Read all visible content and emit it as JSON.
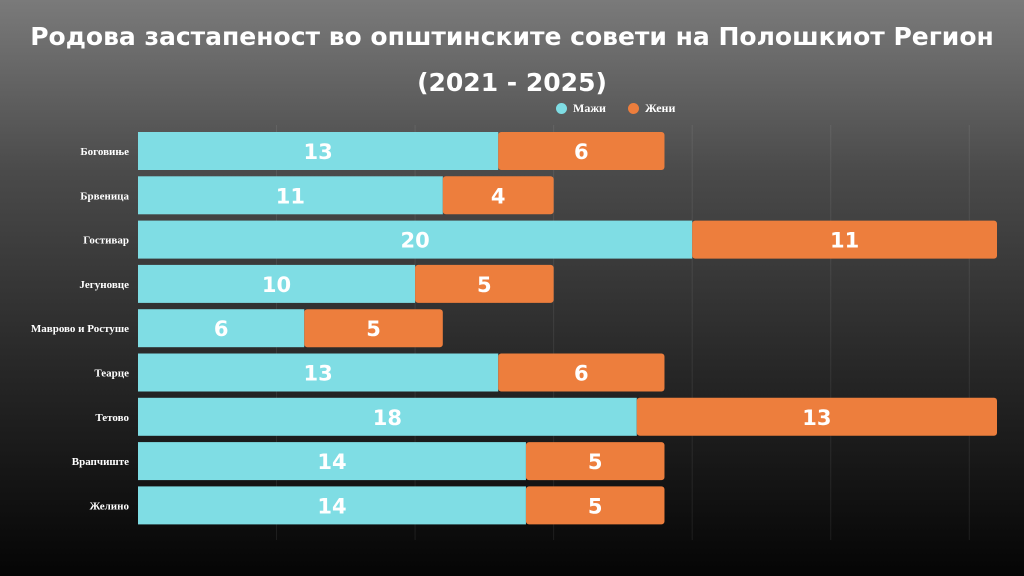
{
  "chart_data": {
    "type": "bar",
    "orientation": "horizontal",
    "stacked": true,
    "title": "Родова застапеност во општинските совети на Полошкиот Регион",
    "subtitle": "(2021 - 2025)",
    "categories": [
      "Боговиње",
      "Брвеница",
      "Гостивар",
      "Јегуновце",
      "Маврово и Ростуше",
      "Теарце",
      "Тетово",
      "Врапчиште",
      "Желино"
    ],
    "series": [
      {
        "name": "Мажи",
        "color": "#7fdde4",
        "values": [
          13,
          11,
          20,
          10,
          6,
          13,
          18,
          14,
          14
        ]
      },
      {
        "name": "Жени",
        "color": "#ed7e3d",
        "values": [
          6,
          4,
          11,
          5,
          5,
          6,
          13,
          5,
          5
        ]
      }
    ],
    "xlim": [
      0,
      31
    ],
    "grid": true,
    "legend": "top-right"
  }
}
